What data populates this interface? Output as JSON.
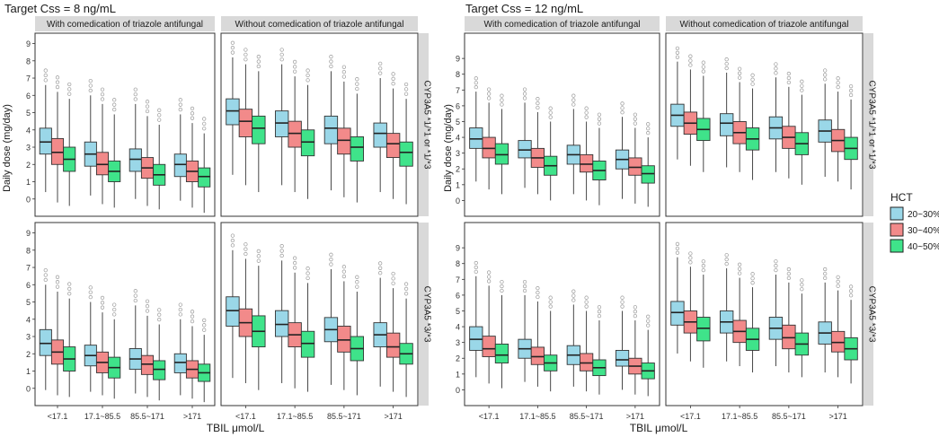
{
  "chart_data": {
    "type": "boxplot",
    "x_tick_labels": [
      "<17.1",
      "17.1~85.5",
      "85.5~171",
      ">171"
    ],
    "xlabel": "TBIL μmol/L",
    "ylabel": "Daily dose (mg/day)",
    "legend": {
      "title": "HCT",
      "placement": "right",
      "entries": [
        {
          "label": "20~30%",
          "color": "#9AD7E8"
        },
        {
          "label": "30~40%",
          "color": "#F28A8A"
        },
        {
          "label": "40~50%",
          "color": "#3FE38A"
        }
      ]
    },
    "column_strips": [
      "With comedication of triazole antifungal",
      "Without comedication of triazole antifungal"
    ],
    "row_strips": [
      "CYP3A5 *1/*1 or *1/*3",
      "CYP3A5 *3/*3"
    ],
    "blocks": [
      {
        "title": "Target Css = 8 ng/mL",
        "ylim": [
          -1,
          9.6
        ],
        "y_ticks": [
          0,
          1,
          2,
          3,
          4,
          5,
          6,
          7,
          8,
          9
        ],
        "panels": [
          {
            "row": 0,
            "col": 0,
            "boxes": [
              [
                [
                  0.4,
                  2.6,
                  3.3,
                  4.1,
                  6.6
                ],
                [
                  -0.2,
                  2.0,
                  2.7,
                  3.5,
                  6.2
                ],
                [
                  -0.4,
                  1.6,
                  2.3,
                  3.0,
                  5.8
                ],
                [
                  0.2,
                  1.9,
                  2.6,
                  3.3,
                  6.0
                ],
                [
                  -0.3,
                  1.4,
                  2.0,
                  2.7,
                  5.5
                ],
                [
                  -0.5,
                  1.0,
                  1.6,
                  2.2,
                  4.9
                ],
                [
                  0.0,
                  1.6,
                  2.3,
                  2.9,
                  5.5
                ],
                [
                  -0.4,
                  1.2,
                  1.8,
                  2.4,
                  4.8
                ],
                [
                  -0.6,
                  0.8,
                  1.4,
                  2.0,
                  4.3
                ],
                [
                  -0.1,
                  1.3,
                  2.0,
                  2.6,
                  4.9
                ],
                [
                  -0.5,
                  1.0,
                  1.6,
                  2.2,
                  4.4
                ],
                [
                  -0.8,
                  0.7,
                  1.3,
                  1.8,
                  3.8
                ]
              ]
            ]
          },
          {
            "row": 0,
            "col": 1,
            "boxes": [
              [
                [
                  1.4,
                  4.3,
                  5.1,
                  5.8,
                  8.2
                ],
                [
                  0.8,
                  3.6,
                  4.5,
                  5.2,
                  7.8
                ],
                [
                  0.4,
                  3.2,
                  4.1,
                  4.8,
                  7.4
                ],
                [
                  0.8,
                  3.6,
                  4.4,
                  5.1,
                  7.8
                ],
                [
                  0.4,
                  3.0,
                  3.8,
                  4.5,
                  7.1
                ],
                [
                  0.0,
                  2.5,
                  3.3,
                  4.0,
                  6.6
                ],
                [
                  0.5,
                  3.2,
                  4.1,
                  4.8,
                  7.4
                ],
                [
                  0.1,
                  2.6,
                  3.4,
                  4.1,
                  6.8
                ],
                [
                  -0.2,
                  2.2,
                  3.0,
                  3.6,
                  6.1
                ],
                [
                  0.4,
                  3.0,
                  3.8,
                  4.4,
                  7.0
                ],
                [
                  0.0,
                  2.4,
                  3.2,
                  3.8,
                  6.4
                ],
                [
                  -0.3,
                  1.9,
                  2.7,
                  3.3,
                  5.8
                ]
              ]
            ]
          },
          {
            "row": 1,
            "col": 0,
            "boxes": [
              [
                [
                  -0.1,
                  1.9,
                  2.6,
                  3.4,
                  6.0
                ],
                [
                  -0.4,
                  1.4,
                  2.1,
                  2.8,
                  5.6
                ],
                [
                  -0.5,
                  1.0,
                  1.7,
                  2.4,
                  5.2
                ],
                [
                  -0.2,
                  1.3,
                  1.9,
                  2.5,
                  5.0
                ],
                [
                  -0.4,
                  0.9,
                  1.5,
                  2.1,
                  4.4
                ],
                [
                  -0.6,
                  0.6,
                  1.2,
                  1.8,
                  4.0
                ],
                [
                  -0.3,
                  1.1,
                  1.7,
                  2.3,
                  4.8
                ],
                [
                  -0.5,
                  0.8,
                  1.4,
                  1.9,
                  4.2
                ],
                [
                  -0.7,
                  0.5,
                  1.1,
                  1.6,
                  3.7
                ],
                [
                  -0.4,
                  0.9,
                  1.5,
                  2.0,
                  4.0
                ],
                [
                  -0.6,
                  0.6,
                  1.1,
                  1.6,
                  3.6
                ],
                [
                  -0.8,
                  0.4,
                  0.9,
                  1.4,
                  3.1
                ]
              ]
            ]
          },
          {
            "row": 1,
            "col": 1,
            "boxes": [
              [
                [
                  0.6,
                  3.6,
                  4.5,
                  5.3,
                  8.0
                ],
                [
                  0.3,
                  3.0,
                  3.8,
                  4.6,
                  7.5
                ],
                [
                  -0.1,
                  2.4,
                  3.3,
                  4.2,
                  7.1
                ],
                [
                  0.3,
                  3.0,
                  3.7,
                  4.5,
                  7.4
                ],
                [
                  0.0,
                  2.4,
                  3.1,
                  3.8,
                  6.7
                ],
                [
                  -0.2,
                  1.8,
                  2.6,
                  3.3,
                  6.1
                ],
                [
                  0.2,
                  2.7,
                  3.4,
                  4.1,
                  6.9
                ],
                [
                  -0.1,
                  2.1,
                  2.8,
                  3.6,
                  6.2
                ],
                [
                  -0.4,
                  1.6,
                  2.3,
                  3.0,
                  5.6
                ],
                [
                  0.1,
                  2.4,
                  3.1,
                  3.8,
                  6.4
                ],
                [
                  -0.2,
                  1.8,
                  2.4,
                  3.2,
                  5.8
                ],
                [
                  -0.5,
                  1.4,
                  2.0,
                  2.6,
                  5.2
                ]
              ]
            ]
          }
        ]
      },
      {
        "title": "Target Css = 12 ng/mL",
        "ylim": [
          -1,
          10.6
        ],
        "y_ticks": [
          0,
          1,
          2,
          3,
          4,
          5,
          6,
          7,
          8,
          9
        ],
        "panels": [
          {
            "row": 0,
            "col": 0,
            "boxes": [
              [
                [
                  1.2,
                  3.3,
                  3.9,
                  4.6,
                  6.9
                ],
                [
                  0.7,
                  2.7,
                  3.3,
                  4.0,
                  6.2
                ],
                [
                  0.4,
                  2.3,
                  2.9,
                  3.6,
                  5.8
                ],
                [
                  0.8,
                  2.7,
                  3.2,
                  3.8,
                  6.2
                ],
                [
                  0.4,
                  2.1,
                  2.7,
                  3.3,
                  5.6
                ],
                [
                  0.0,
                  1.6,
                  2.2,
                  2.8,
                  5.0
                ],
                [
                  0.4,
                  2.3,
                  2.9,
                  3.5,
                  5.8
                ],
                [
                  0.0,
                  1.8,
                  2.3,
                  2.9,
                  5.0
                ],
                [
                  -0.3,
                  1.3,
                  1.9,
                  2.5,
                  4.6
                ],
                [
                  0.1,
                  2.0,
                  2.6,
                  3.2,
                  5.3
                ],
                [
                  -0.2,
                  1.6,
                  2.1,
                  2.7,
                  4.6
                ],
                [
                  -0.4,
                  1.1,
                  1.7,
                  2.2,
                  4.0
                ]
              ]
            ]
          },
          {
            "row": 0,
            "col": 1,
            "boxes": [
              [
                [
                  2.6,
                  4.7,
                  5.4,
                  6.1,
                  8.8
                ],
                [
                  2.2,
                  4.2,
                  4.9,
                  5.6,
                  8.3
                ],
                [
                  1.8,
                  3.8,
                  4.5,
                  5.2,
                  7.9
                ],
                [
                  2.1,
                  4.1,
                  4.9,
                  5.5,
                  8.1
                ],
                [
                  1.8,
                  3.6,
                  4.3,
                  5.0,
                  7.5
                ],
                [
                  1.3,
                  3.2,
                  3.9,
                  4.6,
                  7.1
                ],
                [
                  1.8,
                  3.9,
                  4.6,
                  5.3,
                  7.8
                ],
                [
                  1.4,
                  3.3,
                  4.0,
                  4.7,
                  7.2
                ],
                [
                  1.0,
                  2.9,
                  3.6,
                  4.3,
                  6.7
                ],
                [
                  1.5,
                  3.7,
                  4.4,
                  5.1,
                  7.4
                ],
                [
                  1.2,
                  3.1,
                  3.8,
                  4.5,
                  6.9
                ],
                [
                  0.7,
                  2.6,
                  3.3,
                  4.0,
                  6.4
                ]
              ]
            ]
          },
          {
            "row": 1,
            "col": 0,
            "boxes": [
              [
                [
                  0.8,
                  2.5,
                  3.2,
                  4.0,
                  7.2
                ],
                [
                  0.4,
                  2.1,
                  2.6,
                  3.4,
                  6.6
                ],
                [
                  0.1,
                  1.7,
                  2.2,
                  2.9,
                  6.0
                ],
                [
                  0.5,
                  2.0,
                  2.6,
                  3.2,
                  6.0
                ],
                [
                  0.2,
                  1.6,
                  2.1,
                  2.7,
                  5.6
                ],
                [
                  -0.1,
                  1.2,
                  1.7,
                  2.2,
                  5.0
                ],
                [
                  0.2,
                  1.6,
                  2.2,
                  2.8,
                  5.4
                ],
                [
                  -0.1,
                  1.2,
                  1.7,
                  2.3,
                  5.0
                ],
                [
                  -0.3,
                  0.9,
                  1.4,
                  1.9,
                  4.4
                ],
                [
                  0.0,
                  1.5,
                  1.9,
                  2.5,
                  5.0
                ],
                [
                  -0.3,
                  1.0,
                  1.5,
                  2.0,
                  4.4
                ],
                [
                  -0.4,
                  0.7,
                  1.2,
                  1.7,
                  3.8
                ]
              ]
            ]
          },
          {
            "row": 1,
            "col": 1,
            "boxes": [
              [
                [
                  2.3,
                  4.1,
                  4.9,
                  5.6,
                  8.4
                ],
                [
                  1.8,
                  3.6,
                  4.3,
                  5.0,
                  7.8
                ],
                [
                  1.4,
                  3.1,
                  3.9,
                  4.6,
                  7.3
                ],
                [
                  1.8,
                  3.6,
                  4.3,
                  5.0,
                  7.7
                ],
                [
                  1.5,
                  3.0,
                  3.7,
                  4.4,
                  7.1
                ],
                [
                  1.1,
                  2.5,
                  3.2,
                  3.9,
                  6.5
                ],
                [
                  1.5,
                  3.2,
                  3.9,
                  4.6,
                  7.3
                ],
                [
                  1.1,
                  2.6,
                  3.3,
                  4.1,
                  6.8
                ],
                [
                  0.8,
                  2.2,
                  2.9,
                  3.6,
                  6.1
                ],
                [
                  1.1,
                  2.9,
                  3.6,
                  4.3,
                  6.8
                ],
                [
                  0.8,
                  2.4,
                  3.0,
                  3.7,
                  6.3
                ],
                [
                  0.4,
                  1.9,
                  2.6,
                  3.3,
                  5.7
                ]
              ]
            ]
          }
        ]
      }
    ]
  }
}
